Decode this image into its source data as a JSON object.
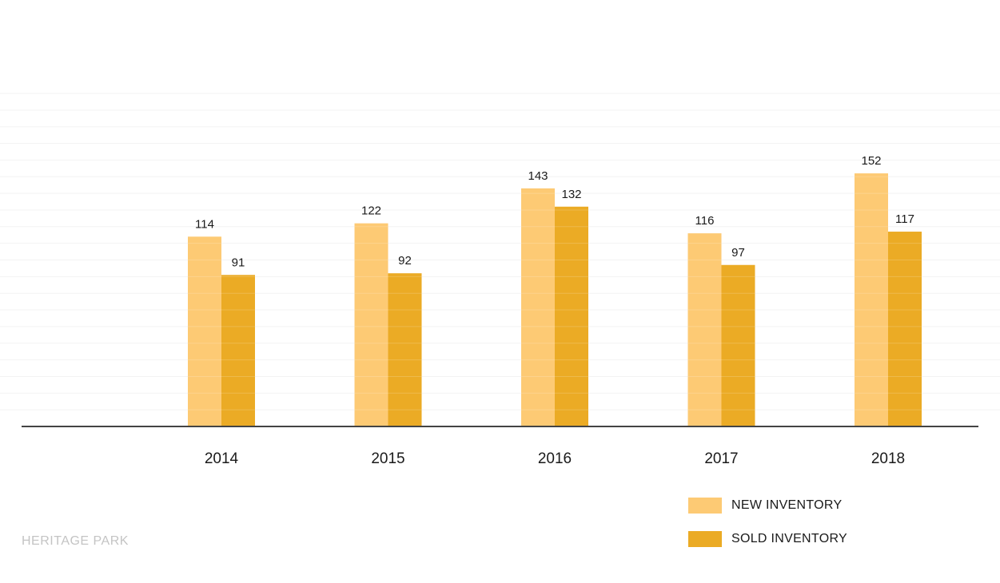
{
  "chart_data": {
    "type": "bar",
    "categories": [
      "2014",
      "2015",
      "2016",
      "2017",
      "2018"
    ],
    "series": [
      {
        "name": "NEW INVENTORY",
        "values": [
          114,
          122,
          143,
          116,
          152
        ],
        "color": "#fdca74"
      },
      {
        "name": "SOLD INVENTORY",
        "values": [
          91,
          92,
          132,
          97,
          117
        ],
        "color": "#ebab25"
      }
    ],
    "ylim": [
      0,
      200
    ],
    "grid": true,
    "legend_position": "bottom-right",
    "data_labels": true
  },
  "footer": {
    "brand": "HERITAGE PARK"
  }
}
